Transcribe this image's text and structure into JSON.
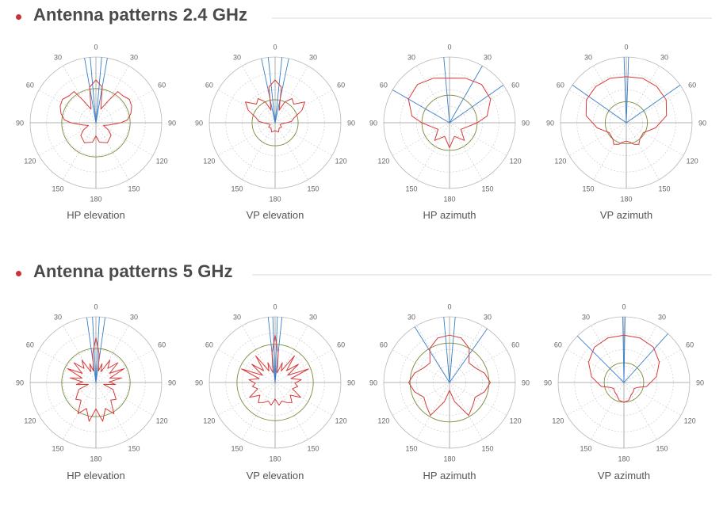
{
  "sections": [
    {
      "title": "Antenna patterns 2.4 GHz",
      "plots": [
        {
          "label": "HP elevation",
          "pattern": "hp_elevation_24"
        },
        {
          "label": "VP elevation",
          "pattern": "vp_elevation_24"
        },
        {
          "label": "HP azimuth",
          "pattern": "hp_azimuth_24"
        },
        {
          "label": "VP azimuth",
          "pattern": "vp_azimuth_24"
        }
      ]
    },
    {
      "title": "Antenna patterns 5 GHz",
      "plots": [
        {
          "label": "HP elevation",
          "pattern": "hp_elevation_5"
        },
        {
          "label": "VP elevation",
          "pattern": "vp_elevation_5"
        },
        {
          "label": "HP azimuth",
          "pattern": "hp_azimuth_5"
        },
        {
          "label": "VP azimuth",
          "pattern": "vp_azimuth_5"
        }
      ]
    }
  ],
  "chart_data": [
    {
      "type": "polar",
      "title": "HP elevation",
      "angle_ticks": [
        "0",
        "30",
        "60",
        "90",
        "120",
        "150",
        "180",
        "150",
        "120",
        "90",
        "60",
        "30"
      ],
      "rlim": [
        0,
        1
      ],
      "series": [
        {
          "color": "#d93a3a",
          "angles": [
            0,
            10,
            20,
            30,
            35,
            45,
            55,
            65,
            75,
            85,
            90,
            100,
            110,
            120,
            130,
            150,
            170,
            180,
            190,
            210,
            230,
            240,
            250,
            260,
            270,
            275,
            285,
            295,
            305,
            315,
            325,
            330,
            340,
            350
          ],
          "values": [
            0.65,
            0.55,
            0.22,
            0.4,
            0.58,
            0.58,
            0.62,
            0.6,
            0.55,
            0.48,
            0.38,
            0.2,
            0.12,
            0.22,
            0.3,
            0.35,
            0.3,
            0.2,
            0.3,
            0.35,
            0.3,
            0.22,
            0.12,
            0.2,
            0.38,
            0.48,
            0.55,
            0.6,
            0.62,
            0.58,
            0.58,
            0.4,
            0.22,
            0.55
          ]
        }
      ],
      "reference_circle": 0.52,
      "beam_lines_deg": [
        -10,
        -5,
        5,
        10
      ]
    },
    {
      "type": "polar",
      "title": "VP elevation",
      "angle_ticks": [
        "0",
        "30",
        "60",
        "90",
        "120",
        "150",
        "180",
        "150",
        "120",
        "90",
        "60",
        "30"
      ],
      "rlim": [
        0,
        1
      ],
      "series": [
        {
          "color": "#d93a3a",
          "angles": [
            0,
            10,
            18,
            25,
            35,
            45,
            55,
            65,
            75,
            85,
            90,
            100,
            110,
            125,
            140,
            160,
            180,
            200,
            220,
            235,
            250,
            260,
            270,
            275,
            285,
            295,
            305,
            315,
            325,
            335,
            342,
            350
          ],
          "values": [
            0.65,
            0.55,
            0.2,
            0.35,
            0.45,
            0.4,
            0.55,
            0.45,
            0.3,
            0.25,
            0.18,
            0.1,
            0.08,
            0.12,
            0.1,
            0.15,
            0.12,
            0.15,
            0.1,
            0.12,
            0.08,
            0.1,
            0.18,
            0.25,
            0.3,
            0.45,
            0.55,
            0.4,
            0.45,
            0.35,
            0.2,
            0.55
          ]
        }
      ],
      "reference_circle": 0.35,
      "beam_lines_deg": [
        -12,
        -6,
        6,
        12
      ]
    },
    {
      "type": "polar",
      "title": "HP azimuth",
      "angle_ticks": [
        "0",
        "30",
        "60",
        "90",
        "120",
        "150",
        "180",
        "150",
        "120",
        "90",
        "60",
        "30"
      ],
      "rlim": [
        0,
        1
      ],
      "series": [
        {
          "color": "#d93a3a",
          "angles": [
            0,
            20,
            40,
            60,
            80,
            90,
            100,
            120,
            140,
            160,
            180,
            200,
            220,
            240,
            260,
            270,
            280,
            300,
            320,
            340
          ],
          "values": [
            0.68,
            0.72,
            0.76,
            0.72,
            0.58,
            0.42,
            0.3,
            0.2,
            0.35,
            0.22,
            0.38,
            0.22,
            0.35,
            0.2,
            0.3,
            0.42,
            0.58,
            0.72,
            0.76,
            0.72
          ]
        }
      ],
      "reference_circle": 0.42,
      "beam_lines_deg": [
        -60,
        -5,
        30,
        55
      ]
    },
    {
      "type": "polar",
      "title": "VP azimuth",
      "angle_ticks": [
        "0",
        "30",
        "60",
        "90",
        "120",
        "150",
        "180",
        "150",
        "120",
        "90",
        "60",
        "30"
      ],
      "rlim": [
        0,
        1
      ],
      "series": [
        {
          "color": "#d93a3a",
          "angles": [
            0,
            20,
            40,
            60,
            80,
            100,
            120,
            140,
            150,
            160,
            170,
            180,
            190,
            200,
            210,
            220,
            240,
            260,
            280,
            300,
            320,
            340
          ],
          "values": [
            0.7,
            0.72,
            0.72,
            0.7,
            0.62,
            0.45,
            0.3,
            0.32,
            0.38,
            0.35,
            0.3,
            0.28,
            0.3,
            0.35,
            0.38,
            0.32,
            0.3,
            0.45,
            0.62,
            0.7,
            0.72,
            0.72
          ]
        }
      ],
      "reference_circle": 0.32,
      "beam_lines_deg": [
        -55,
        -2,
        2,
        55
      ]
    },
    {
      "type": "polar",
      "title": "HP elevation",
      "angle_ticks": [
        "0",
        "30",
        "60",
        "90",
        "120",
        "150",
        "180",
        "150",
        "120",
        "90",
        "60",
        "30"
      ],
      "rlim": [
        0,
        1
      ],
      "series": [
        {
          "color": "#d93a3a",
          "angles": [
            0,
            6,
            12,
            18,
            25,
            32,
            40,
            48,
            56,
            64,
            72,
            80,
            88,
            96,
            104,
            112,
            120,
            130,
            140,
            150,
            160,
            170,
            180,
            190,
            200,
            210,
            220,
            230,
            240,
            248,
            256,
            264,
            272,
            280,
            288,
            296,
            304,
            312,
            320,
            328,
            335,
            342,
            348,
            354
          ],
          "values": [
            0.68,
            0.45,
            0.18,
            0.3,
            0.18,
            0.4,
            0.28,
            0.45,
            0.25,
            0.48,
            0.22,
            0.4,
            0.2,
            0.3,
            0.12,
            0.28,
            0.32,
            0.4,
            0.35,
            0.55,
            0.42,
            0.6,
            0.4,
            0.6,
            0.42,
            0.55,
            0.35,
            0.4,
            0.32,
            0.28,
            0.12,
            0.3,
            0.2,
            0.4,
            0.22,
            0.48,
            0.25,
            0.45,
            0.28,
            0.4,
            0.18,
            0.3,
            0.18,
            0.45
          ]
        }
      ],
      "reference_circle": 0.52,
      "beam_lines_deg": [
        -8,
        -3,
        3,
        8
      ]
    },
    {
      "type": "polar",
      "title": "VP elevation",
      "angle_ticks": [
        "0",
        "30",
        "60",
        "90",
        "120",
        "150",
        "180",
        "150",
        "120",
        "90",
        "60",
        "30"
      ],
      "rlim": [
        0,
        1
      ],
      "series": [
        {
          "color": "#d93a3a",
          "angles": [
            0,
            6,
            12,
            20,
            28,
            36,
            44,
            52,
            60,
            68,
            76,
            84,
            92,
            100,
            110,
            120,
            130,
            140,
            150,
            160,
            170,
            180,
            190,
            200,
            210,
            220,
            230,
            240,
            250,
            260,
            268,
            276,
            284,
            292,
            300,
            308,
            316,
            324,
            332,
            340,
            348,
            354
          ],
          "values": [
            0.72,
            0.45,
            0.15,
            0.32,
            0.2,
            0.5,
            0.25,
            0.45,
            0.22,
            0.55,
            0.25,
            0.4,
            0.3,
            0.35,
            0.28,
            0.45,
            0.3,
            0.4,
            0.35,
            0.3,
            0.35,
            0.25,
            0.35,
            0.3,
            0.35,
            0.4,
            0.3,
            0.45,
            0.28,
            0.35,
            0.3,
            0.4,
            0.25,
            0.55,
            0.22,
            0.45,
            0.25,
            0.5,
            0.2,
            0.32,
            0.15,
            0.45
          ]
        }
      ],
      "reference_circle": 0.58,
      "beam_lines_deg": [
        -6,
        -2,
        2,
        6
      ]
    },
    {
      "type": "polar",
      "title": "HP azimuth",
      "angle_ticks": [
        "0",
        "30",
        "60",
        "90",
        "120",
        "150",
        "180",
        "150",
        "120",
        "90",
        "60",
        "30"
      ],
      "rlim": [
        0,
        1
      ],
      "series": [
        {
          "color": "#d93a3a",
          "angles": [
            0,
            15,
            30,
            45,
            60,
            75,
            90,
            105,
            120,
            135,
            150,
            165,
            180,
            195,
            210,
            225,
            240,
            255,
            270,
            285,
            300,
            315,
            330,
            345
          ],
          "values": [
            0.72,
            0.7,
            0.6,
            0.42,
            0.45,
            0.55,
            0.62,
            0.55,
            0.45,
            0.5,
            0.58,
            0.3,
            0.12,
            0.3,
            0.58,
            0.5,
            0.45,
            0.55,
            0.62,
            0.55,
            0.45,
            0.42,
            0.6,
            0.7
          ]
        }
      ],
      "reference_circle": 0.6,
      "beam_lines_deg": [
        -32,
        -5,
        5,
        35
      ]
    },
    {
      "type": "polar",
      "title": "VP azimuth",
      "angle_ticks": [
        "0",
        "30",
        "60",
        "90",
        "120",
        "150",
        "180",
        "150",
        "120",
        "90",
        "60",
        "30"
      ],
      "rlim": [
        0,
        1
      ],
      "series": [
        {
          "color": "#d93a3a",
          "angles": [
            0,
            20,
            40,
            60,
            80,
            100,
            110,
            120,
            135,
            150,
            165,
            180,
            195,
            210,
            225,
            240,
            250,
            260,
            280,
            300,
            320,
            340
          ],
          "values": [
            0.72,
            0.72,
            0.7,
            0.62,
            0.5,
            0.35,
            0.22,
            0.18,
            0.2,
            0.22,
            0.28,
            0.3,
            0.28,
            0.22,
            0.2,
            0.18,
            0.22,
            0.35,
            0.5,
            0.62,
            0.7,
            0.72
          ]
        }
      ],
      "reference_circle": 0.3,
      "beam_lines_deg": [
        -45,
        -1,
        1,
        42
      ]
    }
  ],
  "colors": {
    "pattern": "#d93a3a",
    "reference_circle": "#7a8a3a",
    "beam_lines": "#3a7fc8",
    "grid": "#b8b8b8",
    "bullet": "#c8333a",
    "title": "#4a4a4a"
  }
}
